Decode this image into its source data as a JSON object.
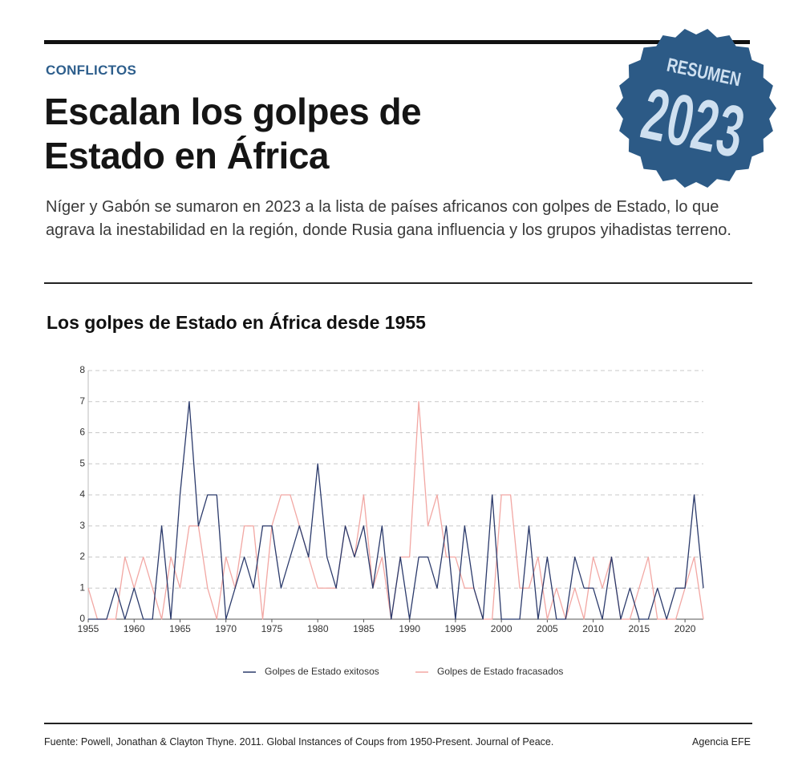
{
  "header": {
    "kicker": "CONFLICTOS",
    "title": "Escalan los golpes de Estado en África",
    "subtitle": "Níger y Gabón se sumaron en 2023 a la lista de países africanos con golpes de Estado, lo que agrava la inestabilidad en la región, donde Rusia gana influencia y los grupos yihadistas terreno.",
    "badge": {
      "label": "RESUMEN",
      "year": "2023"
    }
  },
  "chart_data": {
    "type": "line",
    "title": "Los golpes de Estado en África desde 1955",
    "x": [
      1955,
      1956,
      1957,
      1958,
      1959,
      1960,
      1961,
      1962,
      1963,
      1964,
      1965,
      1966,
      1967,
      1968,
      1969,
      1970,
      1971,
      1972,
      1973,
      1974,
      1975,
      1976,
      1977,
      1978,
      1979,
      1980,
      1981,
      1982,
      1983,
      1984,
      1985,
      1986,
      1987,
      1988,
      1989,
      1990,
      1991,
      1992,
      1993,
      1994,
      1995,
      1996,
      1997,
      1998,
      1999,
      2000,
      2001,
      2002,
      2003,
      2004,
      2005,
      2006,
      2007,
      2008,
      2009,
      2010,
      2011,
      2012,
      2013,
      2014,
      2015,
      2016,
      2017,
      2018,
      2019,
      2020,
      2021,
      2022
    ],
    "series": [
      {
        "name": "Golpes de Estado exitosos",
        "color": "#2b3a6b",
        "values": [
          0,
          0,
          0,
          1,
          0,
          1,
          0,
          0,
          3,
          0,
          4,
          7,
          3,
          4,
          4,
          0,
          1,
          2,
          1,
          3,
          3,
          1,
          2,
          3,
          2,
          5,
          2,
          1,
          3,
          2,
          3,
          1,
          3,
          0,
          2,
          0,
          2,
          2,
          1,
          3,
          0,
          3,
          1,
          0,
          4,
          0,
          0,
          0,
          3,
          0,
          2,
          0,
          0,
          2,
          1,
          1,
          0,
          2,
          0,
          1,
          0,
          0,
          1,
          0,
          1,
          1,
          4,
          1
        ]
      },
      {
        "name": "Golpes de Estado fracasados",
        "color": "#f2a7a3",
        "values": [
          1,
          0,
          0,
          0,
          2,
          1,
          2,
          1,
          0,
          2,
          1,
          3,
          3,
          1,
          0,
          2,
          1,
          3,
          3,
          0,
          3,
          4,
          4,
          3,
          2,
          1,
          1,
          1,
          3,
          2,
          4,
          1,
          2,
          0,
          2,
          2,
          7,
          3,
          4,
          2,
          2,
          1,
          1,
          0,
          0,
          4,
          4,
          1,
          1,
          2,
          0,
          1,
          0,
          1,
          0,
          2,
          1,
          2,
          0,
          0,
          1,
          2,
          0,
          0,
          0,
          1,
          2,
          0
        ]
      }
    ],
    "xlim": [
      1955,
      2022
    ],
    "xticks": [
      1955,
      1960,
      1965,
      1970,
      1975,
      1980,
      1985,
      1990,
      1995,
      2000,
      2005,
      2010,
      2015,
      2020
    ],
    "ylim": [
      0,
      8
    ],
    "yticks": [
      0,
      1,
      2,
      3,
      4,
      5,
      6,
      7,
      8
    ],
    "grid": true
  },
  "footer": {
    "source": "Fuente: Powell, Jonathan & Clayton Thyne. 2011. Global Instances of Coups from 1950-Present. Journal of Peace.",
    "credit": "Agencia EFE"
  }
}
